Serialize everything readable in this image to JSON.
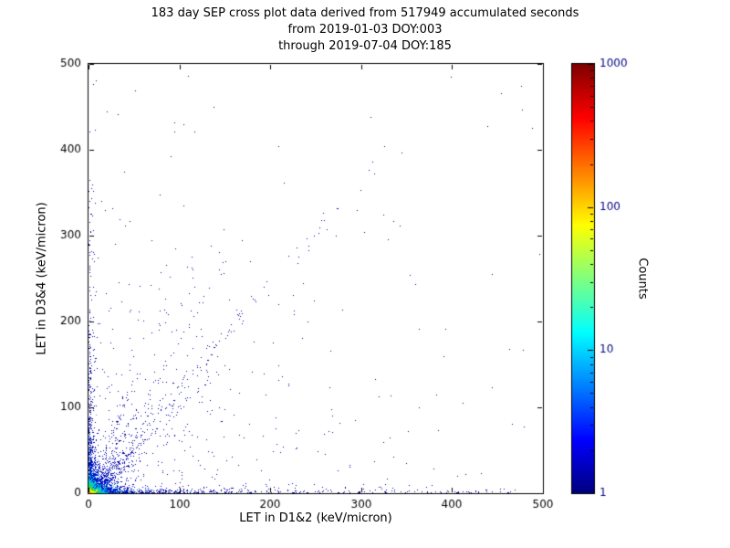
{
  "chart_data": {
    "type": "scatter",
    "title_lines": [
      "183 day SEP cross plot data derived from 517949 accumulated seconds",
      "from 2019-01-03 DOY:003",
      "through 2019-07-04 DOY:185"
    ],
    "xlabel": "LET in D1&2 (keV/micron)",
    "ylabel": "LET in D3&4 (keV/micron)",
    "xlim": [
      0,
      500
    ],
    "ylim": [
      0,
      500
    ],
    "xticks": [
      0,
      100,
      200,
      300,
      400,
      500
    ],
    "yticks": [
      0,
      100,
      200,
      300,
      400,
      500
    ],
    "grid": false,
    "point_color_single_count": "#0000a8",
    "colorbar": {
      "label": "Counts",
      "scale": "log",
      "min": 1,
      "max": 1000,
      "ticks": [
        1,
        10,
        100,
        1000
      ],
      "cmap": "jet",
      "cmap_stops": [
        [
          0.0,
          "#00007f"
        ],
        [
          0.125,
          "#0000ff"
        ],
        [
          0.375,
          "#00ffff"
        ],
        [
          0.625,
          "#ffff00"
        ],
        [
          0.875,
          "#ff0000"
        ],
        [
          1.0,
          "#7f0000"
        ]
      ]
    },
    "clusters": [
      {
        "name": "sparse-background",
        "type": "exp2",
        "n": 380,
        "sx": 115,
        "sy": 115,
        "size": 1,
        "color": "#000099"
      },
      {
        "name": "uniform-outliers",
        "type": "uniform",
        "n": 50,
        "size": 1,
        "color": "#000099"
      },
      {
        "name": "x-axis-band-exp",
        "type": "exp2",
        "n": 520,
        "sx": 60,
        "sy": 2.4,
        "size": 1,
        "color": "#0000a8"
      },
      {
        "name": "x-axis-band-far",
        "type": "bandx",
        "n": 240,
        "len": 470,
        "sy": 2.2,
        "size": 1,
        "color": "#0000a8"
      },
      {
        "name": "x-axis-band-cyan",
        "type": "exp2",
        "n": 130,
        "sx": 22,
        "sy": 1.3,
        "size": 1,
        "color": "#00b4dc"
      },
      {
        "name": "y-axis-band-exp",
        "type": "exp2",
        "n": 380,
        "sx": 2.4,
        "sy": 55,
        "size": 1,
        "color": "#0000a8"
      },
      {
        "name": "y-axis-band-far",
        "type": "bandy",
        "n": 100,
        "len": 375,
        "sx": 2.2,
        "size": 1,
        "color": "#0000a8"
      },
      {
        "name": "y-axis-band-cyan",
        "type": "exp2",
        "n": 80,
        "sx": 1.3,
        "sy": 16,
        "size": 1,
        "color": "#00b4dc"
      },
      {
        "name": "diagonal-main",
        "type": "diag",
        "n": 240,
        "st": 85,
        "slope": 1.22,
        "jitter": 5,
        "size": 1,
        "color": "#0000a8"
      },
      {
        "name": "diagonal-unity",
        "type": "diag",
        "n": 150,
        "st": 40,
        "slope": 1.0,
        "jitter": 2.5,
        "size": 1,
        "color": "#0000a8"
      },
      {
        "name": "diagonal-shallow",
        "type": "diag",
        "n": 110,
        "st": 38,
        "slope": 0.72,
        "jitter": 2.5,
        "size": 1,
        "color": "#0000a8"
      },
      {
        "name": "diagonal-steep",
        "type": "diag",
        "n": 100,
        "st": 50,
        "slope": 1.8,
        "jitter": 3,
        "size": 1,
        "color": "#0000a8"
      },
      {
        "name": "diagonal-steeper",
        "type": "diag",
        "n": 80,
        "st": 40,
        "slope": 2.6,
        "jitter": 3,
        "size": 1,
        "color": "#0000a8"
      },
      {
        "name": "core-halo-blue",
        "type": "exp2",
        "n": 1500,
        "sx": 10,
        "sy": 10,
        "size": 1,
        "color": "#0018cc"
      },
      {
        "name": "core-cyan",
        "type": "exp2",
        "n": 850,
        "sx": 4.5,
        "sy": 4.5,
        "size": 1,
        "color": "#00c8e6"
      },
      {
        "name": "core-green",
        "type": "exp2",
        "n": 550,
        "sx": 2.3,
        "sy": 2.3,
        "size": 1,
        "color": "#30d830"
      },
      {
        "name": "core-yellow",
        "type": "exp2",
        "n": 320,
        "sx": 1.1,
        "sy": 1.1,
        "size": 2,
        "color": "#e6f000"
      },
      {
        "name": "core-peak-orange",
        "type": "exp2",
        "n": 60,
        "sx": 0.5,
        "sy": 0.5,
        "size": 2,
        "color": "#ffa000"
      }
    ]
  }
}
